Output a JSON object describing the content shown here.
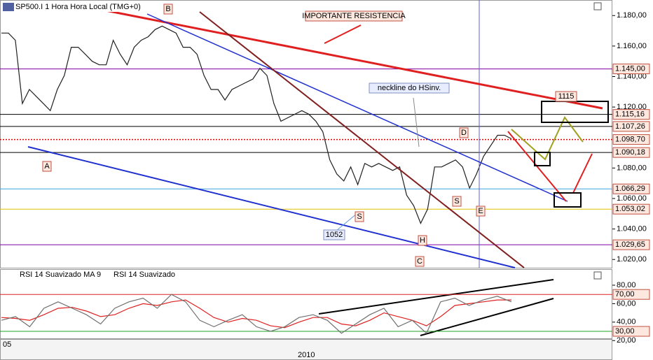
{
  "chart_data": [
    {
      "type": "line",
      "title": "SP500.I 1 Hora Hora Local (TMG+0)",
      "color": "#202020",
      "values": [
        1168.5,
        1168.5,
        1163.8,
        1122.3,
        1131.5,
        1126.9,
        1122.3,
        1117.6,
        1131.5,
        1140.7,
        1159.2,
        1159.2,
        1154.6,
        1150.0,
        1147.7,
        1147.7,
        1163.8,
        1154.6,
        1147.7,
        1159.2,
        1163.8,
        1166.1,
        1170.8,
        1173.1,
        1170.8,
        1168.5,
        1159.2,
        1159.2,
        1154.6,
        1140.7,
        1131.5,
        1131.5,
        1124.6,
        1131.5,
        1133.8,
        1136.1,
        1138.4,
        1145.4,
        1140.7,
        1122.3,
        1110.7,
        1113.0,
        1115.3,
        1117.6,
        1115.3,
        1110.7,
        1103.8,
        1085.3,
        1076.1,
        1071.5,
        1080.7,
        1069.1,
        1083.0,
        1080.7,
        1083.0,
        1080.7,
        1078.4,
        1080.7,
        1062.2,
        1055.3,
        1043.7,
        1053.0,
        1080.7,
        1080.7,
        1083.0,
        1085.3,
        1080.7,
        1066.8,
        1076.1,
        1087.6,
        1094.5,
        1101.5,
        1101.5,
        1099.2
      ],
      "ylim": [
        1014.6,
        1190.2
      ],
      "yticks": [
        {
          "value": 1180,
          "label": "1.180,00"
        },
        {
          "value": 1160,
          "label": "1.160,00"
        },
        {
          "value": 1140,
          "label": "1.140,00"
        },
        {
          "value": 1120,
          "label": "1.120,00"
        },
        {
          "value": 1080,
          "label": "1.080,00"
        },
        {
          "value": 1060,
          "label": "1.060,00"
        },
        {
          "value": 1040,
          "label": "1.040,00"
        },
        {
          "value": 1020,
          "label": "1.020,00"
        }
      ],
      "levels": [
        {
          "value": 1145,
          "label": "1.145,00",
          "color": "#8000a0",
          "style": "solid"
        },
        {
          "value": 1115.16,
          "label": "1.115,16",
          "color": "#000000",
          "style": "solid"
        },
        {
          "value": 1107.26,
          "label": "1.107,26",
          "color": "#000000",
          "style": "solid"
        },
        {
          "value": 1098.7,
          "label": "1.098,70",
          "color": "#e00000",
          "style": "dotted"
        },
        {
          "value": 1090.18,
          "label": "1.090,18",
          "color": "#000000",
          "style": "solid"
        },
        {
          "value": 1066.29,
          "label": "1.066,29",
          "color": "#40a0e0",
          "style": "solid"
        },
        {
          "value": 1053.02,
          "label": "1.053,02",
          "color": "#e0c000",
          "style": "solid"
        },
        {
          "value": 1029.65,
          "label": "1.029,65",
          "color": "#8000a0",
          "style": "solid"
        }
      ],
      "annotations": [
        "B",
        "A",
        "D",
        "E",
        "S",
        "S",
        "H",
        "C",
        "1052",
        "neckline do HSinv.",
        "IMPORTANTE RESISTENCIA",
        "1115"
      ]
    },
    {
      "type": "line",
      "series": [
        {
          "name": "RSI 14 Suavizado MA 9",
          "color": "#e02020",
          "values": [
            45,
            44,
            42,
            48,
            55,
            56,
            52,
            46,
            48,
            55,
            60,
            58,
            62,
            64,
            55,
            45,
            40,
            44,
            42,
            36,
            34,
            40,
            45,
            45,
            38,
            36,
            42,
            50,
            46,
            42,
            36,
            46,
            58,
            60,
            62,
            64,
            64
          ]
        },
        {
          "name": "RSI 14 Suavizado",
          "color": "#707070",
          "values": [
            42,
            46,
            35,
            55,
            62,
            55,
            48,
            38,
            55,
            62,
            66,
            55,
            70,
            62,
            42,
            35,
            42,
            48,
            35,
            30,
            35,
            45,
            48,
            42,
            28,
            38,
            48,
            55,
            35,
            42,
            28,
            62,
            66,
            58,
            64,
            68,
            62
          ]
        }
      ],
      "ylim": [
        17.9,
        97.4
      ],
      "yticks": [
        {
          "value": 80,
          "label": "80,00"
        },
        {
          "value": 60,
          "label": "60,00"
        },
        {
          "value": 40,
          "label": "40,00"
        },
        {
          "value": 20,
          "label": "20,00"
        }
      ],
      "levels": [
        {
          "value": 70,
          "label": "70,00",
          "color": "#e02020",
          "style": "solid"
        },
        {
          "value": 30,
          "label": "30,00",
          "color": "#20a020",
          "style": "solid"
        }
      ],
      "xtick_labels": [
        "05",
        "2010"
      ]
    }
  ]
}
